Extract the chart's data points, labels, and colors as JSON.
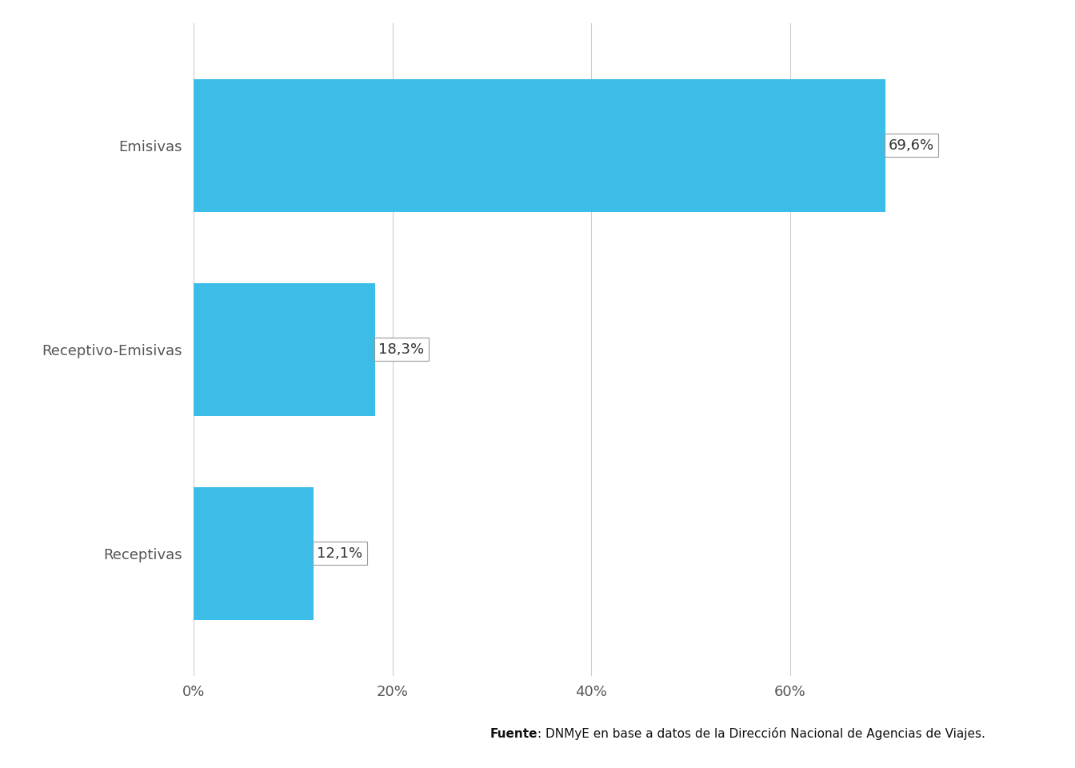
{
  "categories": [
    "Emisivas",
    "Receptivo-Emisivas",
    "Receptivas"
  ],
  "values": [
    69.6,
    18.3,
    12.1
  ],
  "labels": [
    "69,6%",
    "18,3%",
    "12,1%"
  ],
  "bar_color": "#3BBDE8",
  "background_color": "#ffffff",
  "xlim": [
    0,
    80
  ],
  "xticks": [
    0,
    20,
    40,
    60
  ],
  "xticklabels": [
    "0%",
    "20%",
    "40%",
    "60%"
  ],
  "grid_color": "#cccccc",
  "label_fontsize": 13,
  "tick_fontsize": 13,
  "category_fontsize": 13,
  "bar_height": 0.65,
  "source_text": "Fuente: DNMyE en base a datos de la Dirección Nacional de Agencias de Viajes.",
  "source_bold": "Fuente",
  "source_fontsize": 11,
  "ylim": [
    -0.6,
    2.6
  ]
}
